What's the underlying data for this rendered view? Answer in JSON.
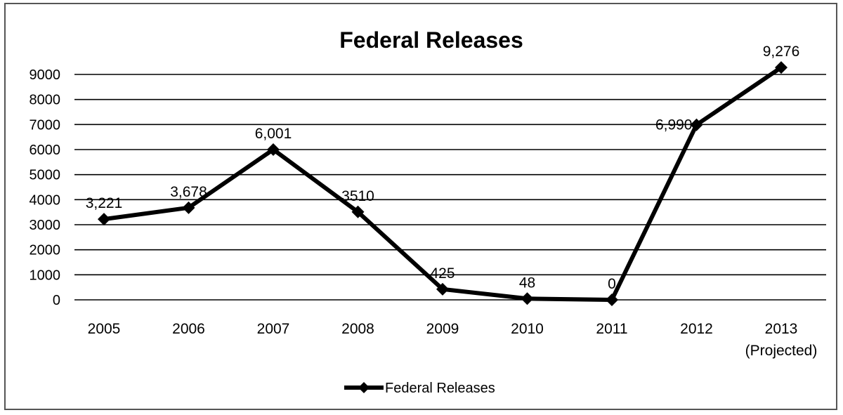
{
  "chart_data": {
    "type": "line",
    "title": "Federal Releases",
    "xlabel": "",
    "ylabel": "",
    "categories": [
      "2005",
      "2006",
      "2007",
      "2008",
      "2009",
      "2010",
      "2011",
      "2012",
      "2013|(Projected)"
    ],
    "ylim": [
      0,
      9000
    ],
    "yticks": [
      "9000",
      "8000",
      "7000",
      "6000",
      "5000",
      "4000",
      "3000",
      "2000",
      "1000",
      "0"
    ],
    "series": [
      {
        "name": "Federal Releases",
        "color": "#000000",
        "values": [
          3221,
          3678,
          6001,
          3510,
          425,
          48,
          0,
          6990,
          9276
        ],
        "labels": [
          "3,221",
          "3,678",
          "6,001",
          "3510",
          "425",
          "48",
          "0",
          "6,990",
          "9,276"
        ]
      }
    ],
    "grid": true,
    "legend": "bottom-center"
  }
}
